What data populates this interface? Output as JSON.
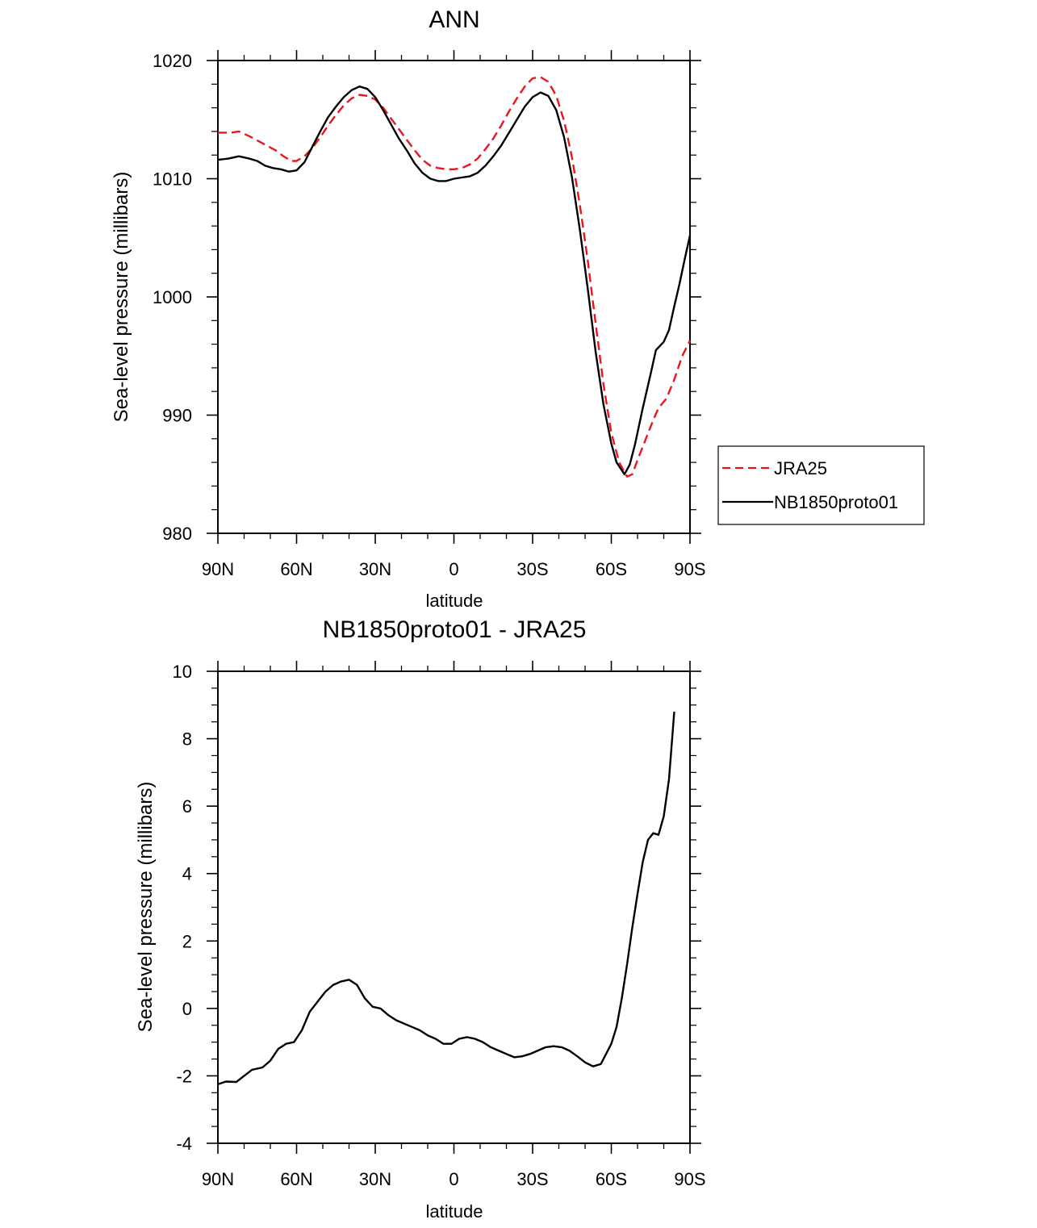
{
  "chart_data": [
    {
      "type": "line",
      "title": "ANN",
      "xlabel": "latitude",
      "ylabel": "Sea-level pressure (millibars)",
      "xlim": [
        90,
        -90
      ],
      "ylim": [
        980,
        1020
      ],
      "x_ticks": [
        {
          "value": 90,
          "label": "90N"
        },
        {
          "value": 60,
          "label": "60N"
        },
        {
          "value": 30,
          "label": "30N"
        },
        {
          "value": 0,
          "label": "0"
        },
        {
          "value": -30,
          "label": "30S"
        },
        {
          "value": -60,
          "label": "60S"
        },
        {
          "value": -90,
          "label": "90S"
        }
      ],
      "y_ticks": [
        {
          "value": 1020,
          "label": "1020"
        },
        {
          "value": 1010,
          "label": "1010"
        },
        {
          "value": 1000,
          "label": "1000"
        },
        {
          "value": 990,
          "label": "990"
        },
        {
          "value": 980,
          "label": "980"
        }
      ],
      "legend": [
        {
          "label": "JRA25",
          "color": "#e8171e",
          "dash": "dashed"
        },
        {
          "label": "NB1850proto01",
          "color": "#000000",
          "dash": "solid"
        }
      ],
      "series": [
        {
          "name": "JRA25",
          "color": "#e8171e",
          "dash": "dashed",
          "points": [
            [
              90,
              1013.9
            ],
            [
              85,
              1013.9
            ],
            [
              82,
              1014.0
            ],
            [
              78,
              1013.6
            ],
            [
              73,
              1013.0
            ],
            [
              68,
              1012.4
            ],
            [
              65,
              1011.9
            ],
            [
              62,
              1011.5
            ],
            [
              60,
              1011.5
            ],
            [
              57,
              1011.9
            ],
            [
              54,
              1012.6
            ],
            [
              51,
              1013.5
            ],
            [
              48,
              1014.5
            ],
            [
              45,
              1015.4
            ],
            [
              42,
              1016.2
            ],
            [
              39,
              1016.8
            ],
            [
              36,
              1017.1
            ],
            [
              33,
              1017.0
            ],
            [
              30,
              1016.7
            ],
            [
              27,
              1016.0
            ],
            [
              24,
              1015.1
            ],
            [
              21,
              1014.2
            ],
            [
              18,
              1013.3
            ],
            [
              15,
              1012.4
            ],
            [
              12,
              1011.6
            ],
            [
              9,
              1011.1
            ],
            [
              6,
              1010.9
            ],
            [
              3,
              1010.8
            ],
            [
              0,
              1010.8
            ],
            [
              -3,
              1010.9
            ],
            [
              -6,
              1011.2
            ],
            [
              -9,
              1011.7
            ],
            [
              -12,
              1012.5
            ],
            [
              -15,
              1013.4
            ],
            [
              -18,
              1014.5
            ],
            [
              -21,
              1015.7
            ],
            [
              -24,
              1016.8
            ],
            [
              -27,
              1017.8
            ],
            [
              -30,
              1018.5
            ],
            [
              -33,
              1018.6
            ],
            [
              -36,
              1018.2
            ],
            [
              -39,
              1017.0
            ],
            [
              -42,
              1014.9
            ],
            [
              -45,
              1011.8
            ],
            [
              -48,
              1007.8
            ],
            [
              -51,
              1003.1
            ],
            [
              -54,
              997.8
            ],
            [
              -57,
              992.6
            ],
            [
              -60,
              988.5
            ],
            [
              -63,
              986.0
            ],
            [
              -66,
              984.8
            ],
            [
              -68,
              985.0
            ],
            [
              -70,
              986.2
            ],
            [
              -73,
              987.9
            ],
            [
              -76,
              989.6
            ],
            [
              -78,
              990.6
            ],
            [
              -81,
              991.4
            ],
            [
              -84,
              993.0
            ],
            [
              -87,
              995.0
            ],
            [
              -90,
              996.3
            ]
          ]
        },
        {
          "name": "NB1850proto01",
          "color": "#000000",
          "dash": "solid",
          "points": [
            [
              90,
              1011.6
            ],
            [
              86,
              1011.7
            ],
            [
              82,
              1011.9
            ],
            [
              78,
              1011.7
            ],
            [
              75,
              1011.5
            ],
            [
              72,
              1011.1
            ],
            [
              69,
              1010.9
            ],
            [
              66,
              1010.8
            ],
            [
              63,
              1010.6
            ],
            [
              60,
              1010.7
            ],
            [
              57,
              1011.4
            ],
            [
              54,
              1012.7
            ],
            [
              51,
              1014.0
            ],
            [
              48,
              1015.2
            ],
            [
              45,
              1016.1
            ],
            [
              42,
              1016.9
            ],
            [
              39,
              1017.5
            ],
            [
              36,
              1017.8
            ],
            [
              33,
              1017.6
            ],
            [
              30,
              1016.9
            ],
            [
              27,
              1015.8
            ],
            [
              24,
              1014.6
            ],
            [
              21,
              1013.4
            ],
            [
              18,
              1012.4
            ],
            [
              15,
              1011.3
            ],
            [
              12,
              1010.5
            ],
            [
              9,
              1010.0
            ],
            [
              6,
              1009.8
            ],
            [
              3,
              1009.8
            ],
            [
              0,
              1010.0
            ],
            [
              -3,
              1010.1
            ],
            [
              -6,
              1010.2
            ],
            [
              -9,
              1010.5
            ],
            [
              -12,
              1011.1
            ],
            [
              -15,
              1011.9
            ],
            [
              -18,
              1012.8
            ],
            [
              -21,
              1013.9
            ],
            [
              -24,
              1015.0
            ],
            [
              -27,
              1016.1
            ],
            [
              -30,
              1016.9
            ],
            [
              -33,
              1017.3
            ],
            [
              -36,
              1017.0
            ],
            [
              -39,
              1015.8
            ],
            [
              -42,
              1013.5
            ],
            [
              -45,
              1010.1
            ],
            [
              -48,
              1005.7
            ],
            [
              -51,
              1000.7
            ],
            [
              -54,
              995.4
            ],
            [
              -57,
              990.9
            ],
            [
              -60,
              987.6
            ],
            [
              -62,
              986.0
            ],
            [
              -65,
              985.0
            ],
            [
              -67,
              985.8
            ],
            [
              -69,
              987.5
            ],
            [
              -72,
              990.6
            ],
            [
              -75,
              993.5
            ],
            [
              -77,
              995.5
            ],
            [
              -80,
              996.2
            ],
            [
              -82,
              997.2
            ],
            [
              -84,
              999.2
            ],
            [
              -86,
              1001.1
            ],
            [
              -88,
              1003.2
            ],
            [
              -90,
              1005.2
            ]
          ]
        }
      ]
    },
    {
      "type": "line",
      "title": "NB1850proto01 - JRA25",
      "xlabel": "latitude",
      "ylabel": "Sea-level pressure (millibars)",
      "xlim": [
        90,
        -90
      ],
      "ylim": [
        -4,
        10
      ],
      "x_ticks": [
        {
          "value": 90,
          "label": "90N"
        },
        {
          "value": 60,
          "label": "60N"
        },
        {
          "value": 30,
          "label": "30N"
        },
        {
          "value": 0,
          "label": "0"
        },
        {
          "value": -30,
          "label": "30S"
        },
        {
          "value": -60,
          "label": "60S"
        },
        {
          "value": -90,
          "label": "90S"
        }
      ],
      "y_ticks": [
        {
          "value": 10,
          "label": "10"
        },
        {
          "value": 8,
          "label": "8"
        },
        {
          "value": 6,
          "label": "6"
        },
        {
          "value": 4,
          "label": "4"
        },
        {
          "value": 2,
          "label": "2"
        },
        {
          "value": 0,
          "label": "0"
        },
        {
          "value": -2,
          "label": "-2"
        },
        {
          "value": -4,
          "label": "-4"
        }
      ],
      "series": [
        {
          "name": "NB1850proto01 - JRA25",
          "color": "#000000",
          "dash": "solid",
          "points": [
            [
              90,
              -2.25
            ],
            [
              87,
              -2.17
            ],
            [
              83,
              -2.18
            ],
            [
              80,
              -2.0
            ],
            [
              77,
              -1.82
            ],
            [
              73,
              -1.75
            ],
            [
              70,
              -1.55
            ],
            [
              67,
              -1.2
            ],
            [
              64,
              -1.05
            ],
            [
              61,
              -1.0
            ],
            [
              58,
              -0.65
            ],
            [
              55,
              -0.1
            ],
            [
              52,
              0.2
            ],
            [
              49,
              0.5
            ],
            [
              46,
              0.7
            ],
            [
              43,
              0.8
            ],
            [
              40,
              0.85
            ],
            [
              37,
              0.7
            ],
            [
              34,
              0.3
            ],
            [
              31,
              0.05
            ],
            [
              28,
              0.0
            ],
            [
              25,
              -0.2
            ],
            [
              22,
              -0.35
            ],
            [
              19,
              -0.45
            ],
            [
              16,
              -0.55
            ],
            [
              13,
              -0.65
            ],
            [
              10,
              -0.8
            ],
            [
              7,
              -0.9
            ],
            [
              4,
              -1.05
            ],
            [
              1,
              -1.05
            ],
            [
              -2,
              -0.9
            ],
            [
              -5,
              -0.85
            ],
            [
              -8,
              -0.9
            ],
            [
              -11,
              -1.0
            ],
            [
              -14,
              -1.15
            ],
            [
              -17,
              -1.25
            ],
            [
              -20,
              -1.35
            ],
            [
              -23,
              -1.45
            ],
            [
              -26,
              -1.42
            ],
            [
              -29,
              -1.35
            ],
            [
              -32,
              -1.25
            ],
            [
              -35,
              -1.15
            ],
            [
              -38,
              -1.12
            ],
            [
              -41,
              -1.15
            ],
            [
              -44,
              -1.25
            ],
            [
              -47,
              -1.42
            ],
            [
              -50,
              -1.6
            ],
            [
              -53,
              -1.72
            ],
            [
              -56,
              -1.65
            ],
            [
              -58,
              -1.35
            ],
            [
              -60,
              -1.05
            ],
            [
              -62,
              -0.55
            ],
            [
              -64,
              0.3
            ],
            [
              -66,
              1.3
            ],
            [
              -68,
              2.4
            ],
            [
              -70,
              3.4
            ],
            [
              -72,
              4.35
            ],
            [
              -74,
              5.0
            ],
            [
              -76,
              5.2
            ],
            [
              -78,
              5.15
            ],
            [
              -80,
              5.7
            ],
            [
              -82,
              6.8
            ],
            [
              -84,
              8.8
            ]
          ]
        }
      ]
    }
  ]
}
